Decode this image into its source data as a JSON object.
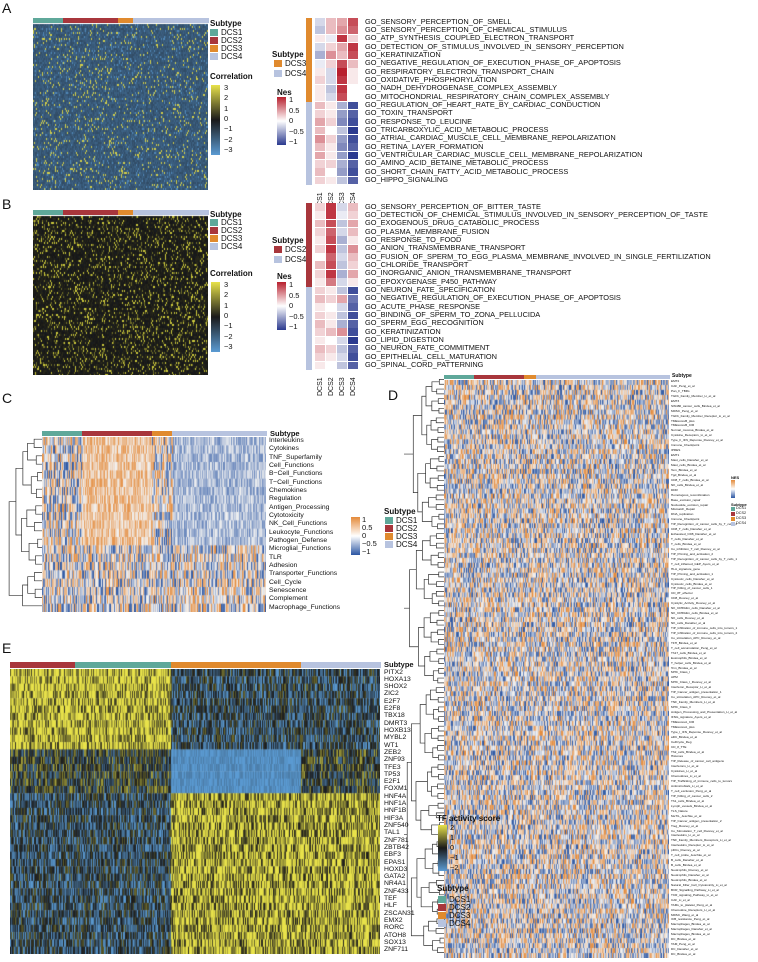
{
  "colors": {
    "DCS1": "#5fa89a",
    "DCS2": "#a8363c",
    "DCS3": "#e08a2e",
    "DCS4": "#b7c3df",
    "heat_low": "#5b9bd3",
    "heat_mid": "#111111",
    "heat_high": "#e8e24a",
    "nes_low": "#2b3a8f",
    "nes_high": "#b8202e"
  },
  "panelA": {
    "letter": "A",
    "subtype_title": "Subtype",
    "subtypes": [
      "DCS1",
      "DCS2",
      "DCS3",
      "DCS4"
    ],
    "corr_title": "Correlation",
    "corr_ticks": [
      "3",
      "2",
      "1",
      "0",
      "−1",
      "−2",
      "−3"
    ],
    "gsea_subtype_title": "Subtype",
    "gsea_subtypes": [
      "DCS3",
      "DCS4"
    ],
    "nes_title": "Nes",
    "nes_ticks": [
      "1",
      "0.5",
      "0",
      "−0.5",
      "−1"
    ],
    "columns": [
      "DCS1",
      "DCS2",
      "DCS3",
      "DCS4"
    ],
    "terms": [
      "GO_SENSORY_PERCEPTION_OF_SMELL",
      "GO_SENSORY_PERCEPTION_OF_CHEMICAL_STIMULUS",
      "GO_ATP_SYNTHESIS_COUPLED_ELECTRON_TRANSPORT",
      "GO_DETECTION_OF_STIMULUS_INVOLVED_IN_SENSORY_PERCEPTION",
      "GO_KERATINIZATION",
      "GO_NEGATIVE_REGULATION_OF_EXECUTION_PHASE_OF_APOPTOSIS",
      "GO_RESPIRATORY_ELECTRON_TRANSPORT_CHAIN",
      "GO_OXIDATIVE_PHOSPHORYLATION",
      "GO_NADH_DEHYDROGENASE_COMPLEX_ASSEMBLY",
      "GO_MITOCHONDRIAL_RESPIRATORY_CHAIN_COMPLEX_ASSEMBLY",
      "GO_REGULATION_OF_HEART_RATE_BY_CARDIAC_CONDUCTION",
      "GO_TOXIN_TRANSPORT",
      "GO_RESPONSE_TO_LEUCINE",
      "GO_TRICARBOXYLIC_ACID_METABOLIC_PROCESS",
      "GO_ATRIAL_CARDIAC_MUSCLE_CELL_MEMBRANE_REPOLARIZATION",
      "GO_RETINA_LAYER_FORMATION",
      "GO_VENTRICULAR_CARDIAC_MUSCLE_CELL_MEMBRANE_REPOLARIZATION",
      "GO_AMINO_ACID_BETAINE_METABOLIC_PROCESS",
      "GO_SHORT_CHAIN_FATTY_ACID_METABOLIC_PROCESS",
      "GO_HIPPO_SIGNALING"
    ],
    "row_subtype": [
      "DCS3",
      "DCS3",
      "DCS3",
      "DCS3",
      "DCS3",
      "DCS3",
      "DCS3",
      "DCS3",
      "DCS3",
      "DCS3",
      "DCS4",
      "DCS4",
      "DCS4",
      "DCS4",
      "DCS4",
      "DCS4",
      "DCS4",
      "DCS4",
      "DCS4",
      "DCS4"
    ],
    "nes": [
      [
        -0.2,
        0.3,
        0.4,
        0.8
      ],
      [
        -0.3,
        0.3,
        0.5,
        0.7
      ],
      [
        0.1,
        -0.1,
        0.9,
        0.2
      ],
      [
        -0.2,
        0.2,
        0.4,
        0.9
      ],
      [
        -0.4,
        0.5,
        0.3,
        0.8
      ],
      [
        -0.1,
        0.2,
        0.8,
        0.3
      ],
      [
        0.1,
        -0.2,
        1.0,
        0.1
      ],
      [
        0.2,
        -0.2,
        0.9,
        0.1
      ],
      [
        0.1,
        -0.3,
        0.9,
        0.0
      ],
      [
        0.1,
        -0.2,
        0.8,
        0.0
      ],
      [
        0.3,
        0.1,
        -0.4,
        -0.9
      ],
      [
        0.2,
        0.1,
        -0.5,
        -0.8
      ],
      [
        0.4,
        0.2,
        -0.6,
        -0.9
      ],
      [
        0.3,
        0.0,
        -0.3,
        -1.0
      ],
      [
        0.5,
        0.2,
        -0.5,
        -0.9
      ],
      [
        0.3,
        0.1,
        -0.6,
        -0.8
      ],
      [
        0.4,
        0.1,
        -0.5,
        -1.0
      ],
      [
        0.2,
        0.2,
        -0.4,
        -0.8
      ],
      [
        0.3,
        0.0,
        -0.5,
        -0.9
      ],
      [
        0.2,
        0.1,
        -0.3,
        -0.8
      ]
    ]
  },
  "panelB": {
    "letter": "B",
    "subtype_title": "Subtype",
    "subtypes": [
      "DCS1",
      "DCS2",
      "DCS3",
      "DCS4"
    ],
    "corr_title": "Correlation",
    "corr_ticks": [
      "3",
      "2",
      "1",
      "0",
      "−1",
      "−2",
      "−3"
    ],
    "gsea_subtype_title": "Subtype",
    "gsea_subtypes": [
      "DCS2",
      "DCS4"
    ],
    "nes_title": "Nes",
    "nes_ticks": [
      "1",
      "0.5",
      "0",
      "−0.5",
      "−1"
    ],
    "columns": [
      "DCS1",
      "DCS2",
      "DCS3",
      "DCS4"
    ],
    "terms": [
      "GO_SENSORY_PERCEPTION_OF_BITTER_TASTE",
      "GO_DETECTION_OF_CHEMICAL_STIMULUS_INVOLVED_IN_SENSORY_PERCEPTION_OF_TASTE",
      "GO_EXOGENOUS_DRUG_CATABOLIC_PROCESS",
      "GO_PLASMA_MEMBRANE_FUSION",
      "GO_RESPONSE_TO_FOOD",
      "GO_ANION_TRANSMEMBRANE_TRANSPORT",
      "GO_FUSION_OF_SPERM_TO_EGG_PLASMA_MEMBRANE_INVOLVED_IN_SINGLE_FERTILIZATION",
      "GO_CHLORIDE_TRANSPORT",
      "GO_INORGANIC_ANION_TRANSMEMBRANE_TRANSPORT",
      "GO_EPOXYGENASE_P450_PATHWAY",
      "GO_NEURON_FATE_SPECIFICATION",
      "GO_NEGATIVE_REGULATION_OF_EXECUTION_PHASE_OF_APOPTOSIS",
      "GO_ACUTE_PHASE_RESPONSE",
      "GO_BINDING_OF_SPERM_TO_ZONA_PELLUCIDA",
      "GO_SPERM_EGG_RECOGNITION",
      "GO_KERATINIZATION",
      "GO_LIPID_DIGESTION",
      "GO_NEURON_FATE_COMMITMENT",
      "GO_EPITHELIAL_CELL_MATURATION",
      "GO_SPINAL_CORD_PATTERNING"
    ],
    "row_subtype": [
      "DCS2",
      "DCS2",
      "DCS2",
      "DCS2",
      "DCS2",
      "DCS2",
      "DCS2",
      "DCS2",
      "DCS2",
      "DCS2",
      "DCS4",
      "DCS4",
      "DCS4",
      "DCS4",
      "DCS4",
      "DCS4",
      "DCS4",
      "DCS4",
      "DCS4",
      "DCS4"
    ],
    "nes": [
      [
        0.2,
        0.9,
        -0.2,
        0.3
      ],
      [
        0.1,
        0.9,
        -0.1,
        0.2
      ],
      [
        0.3,
        0.8,
        -0.3,
        0.4
      ],
      [
        0.2,
        0.7,
        -0.2,
        0.3
      ],
      [
        0.1,
        0.8,
        -0.4,
        0.1
      ],
      [
        0.2,
        0.9,
        -0.3,
        0.5
      ],
      [
        0.0,
        0.7,
        -0.2,
        0.3
      ],
      [
        0.3,
        0.8,
        -0.3,
        0.2
      ],
      [
        0.2,
        0.9,
        -0.4,
        0.4
      ],
      [
        0.1,
        0.6,
        -0.2,
        0.1
      ],
      [
        0.2,
        0.1,
        -0.3,
        -0.9
      ],
      [
        0.3,
        0.2,
        0.4,
        -0.7
      ],
      [
        0.1,
        0.0,
        -0.2,
        -0.8
      ],
      [
        0.2,
        0.1,
        -0.3,
        -0.9
      ],
      [
        0.3,
        0.1,
        -0.4,
        -0.8
      ],
      [
        0.2,
        0.3,
        0.5,
        -0.9
      ],
      [
        0.1,
        0.0,
        -0.2,
        -1.0
      ],
      [
        0.3,
        0.2,
        -0.3,
        -0.8
      ],
      [
        0.2,
        0.1,
        -0.2,
        -0.9
      ],
      [
        0.1,
        0.0,
        -0.3,
        -0.8
      ]
    ]
  },
  "panelC": {
    "letter": "C",
    "subtype_title": "Subtype",
    "subtypes": [
      "DCS1",
      "DCS2",
      "DCS3",
      "DCS4"
    ],
    "scale_ticks": [
      "1",
      "0.5",
      "0",
      "−0.5",
      "−1"
    ],
    "rows": [
      "Interleukins",
      "Cytokines",
      "TNF_Superfamily",
      "Cell_Functions",
      "B−Cell_Functions",
      "T−Cell_Functions",
      "Chemokines",
      "Regulation",
      "Antigen_Processing",
      "Cytotoxicity",
      "NK_Cell_Functions",
      "Leukocyte_Functions",
      "Pathogen_Defense",
      "Microglial_Functions",
      "TLR",
      "Adhesion",
      "Transporter_Functions",
      "Cell_Cycle",
      "Senescence",
      "Complement",
      "Macrophage_Functions"
    ]
  },
  "panelD": {
    "letter": "D",
    "subtype_title": "Subtype",
    "legend_title": "NES",
    "legend_subtype_title": "Subtype",
    "subtypes": [
      "DCS1",
      "DCS2",
      "DCS3",
      "DCS4"
    ],
    "rows": [
      "EMT2",
      "CAF_Peng_et_al",
      "Pan_F_TBRs",
      "TGFb_Family_Member_Li_et_al",
      "EMT3",
      "SW480_cancer_cells_Bindea_et_al",
      "MDSC_Peng_et_al",
      "TGFb_Family_Member_Receptor_Li_et_al",
      "TMEscoreB_plus",
      "TMEscoreB_CIR",
      "Normal_mucosa_Bindea_et_al",
      "Cytokine_Receptors_Li_et_al",
      "Type_II_IFN_Reponse_Rooney_et_al",
      "Immune_Checkpoint",
      "IPRES",
      "EMT1",
      "Mast_cells_Danaher_et_al",
      "Mast_cells_Bindea_et_al",
      "Tem_Bindea_et_al",
      "Tgd_Bindea_et_al",
      "CD8_T_cells_Bindea_et_al",
      "NK_cells_Bindea_et_al",
      "DDR",
      "Homologous_recombination",
      "Base_excision_repair",
      "Nucleotide_excision_repair",
      "Mismatch_Repair",
      "DNA_replication",
      "Immune_Checkpoint",
      "TIP_Recognition_of_cancer_cells_by_T_cells_2",
      "CD8_T_cells_Danaher_et_al",
      "Exhausted_CD8_Danaher_et_al",
      "T_cells_Danaher_et_al",
      "T_cells_Bindea_et_al",
      "Co_inhibition_T_cell_Rooney_et_al",
      "TIP_Priming_and_activation_2",
      "TIP_Recognition_of_cancer_cells_by_T_cells_1",
      "T_cell_inflamed_GEP_Ayers_et_al",
      "HLA_signature_gene",
      "TIP_Priming_and_activation_1",
      "Cytotoxic_cells_Danaher_et_al",
      "Cytotoxic_cells_Bindea_et_al",
      "TIP_Killing_of_cancer_cells_1",
      "CD_8T_effector",
      "CD8_Rooney_et_al",
      "Cytolytic_Activity_Rooney_et_al",
      "NK_CD56dim_cells_Danaher_et_al",
      "NK_CD56dim_cells_Bindea_et_al",
      "NK_cells_Rooney_et_al",
      "NK_cells_Danaher_et_al",
      "TIP_Infiltration_of_immune_cells_into_tumors_1",
      "TIP_Infiltration_of_immune_cells_into_tumors_2",
      "Co_stimulation_APC_Rooney_et_al",
      "TFH_Bindea_et_al",
      "T_cell_accumulation_Peng_et_al",
      "Th17_cells_Bindea_et_al",
      "Eosinophils_Bindea_et_al",
      "T_helper_cells_Bindea_et_al",
      "Tcm_Bindea_et_al",
      "MHC_Class_I",
      "APM",
      "MHC_Class_I_Rooney_et_al",
      "Interferon_Receptor_Li_et_al",
      "TIP_Cancer_antigen_presentation_1",
      "Co_stimulation_APC_Rooney_et_al",
      "TNF_Family_Members_Li_et_al",
      "MHC_Class_II",
      "Antigen_Processing_and_Presentation_Li_et_al",
      "IFNG_signature_Ayers_et_al",
      "TMEscoreA_CIR",
      "TMEscoreA_plus",
      "Type_I_IFN_Reponse_Rooney_et_al",
      "aDC_Bindea_et_al",
      "CellCycle_Reg",
      "CD_8_TTE",
      "Th2_cells_Bindea_et_al",
      "Histones",
      "TIP_Release_of_cancer_cell_antigens",
      "Interferons_Li_et_al",
      "Cytokines_Li_et_al",
      "Chemokines_Li_et_al",
      "TIP_Trafficking_of_immune_cells_to_tumors",
      "Antimicrobials_Li_et_al",
      "T_cell_exclusion_Peng_et_al",
      "TIP_Killing_of_cancer_cells_2",
      "Th1_cells_Bindea_et_al",
      "Lymph_vessels_Bindea_et_al",
      "TLS_Nature",
      "MeTIL_Jeschke_et_al",
      "TIP_Cancer_antigen_presentation_2",
      "Treg_Rooney_et_al",
      "Co_Stimulation_T_cell_Rooney_et_al",
      "Interleukins_Li_et_al",
      "TNF_Family_Members_Receptors_Li_et_al",
      "Interleukins_Receptor_Li_et_al",
      "pDCs_Rooney_et_al",
      "T_cell_probe_Jeschke_et_al",
      "B_cells_Danaher_et_al",
      "B_cells_Bindea_et_al",
      "Neutrophils_Rooney_et_al",
      "Neutrophils_Danaher_et_al",
      "Neutrophils_Bindea_et_al",
      "Natural_Killer_Cell_Cytotoxicity_Li_et_al",
      "BCR_Signalling_Pathway_Li_et_al",
      "TCR_signaling_Pathway_Li_et_al",
      "CAF_Li_et_al",
      "TAMs_to_platelet_Peng_et_al",
      "Chemokine_Receptors_Li_et_al",
      "MDSC_Wang_et_al",
      "ICB_resistance_Peng_et_al",
      "Macrophages_Bindea_et_al",
      "Macrophages_Danaher_et_al",
      "Macrophages_Bindea_et_al",
      "DC_Bindea_et_al",
      "TAM_Peng_et_al",
      "DC_Danaher_et_al",
      "DC_Bindea_et_al"
    ]
  },
  "panelE": {
    "letter": "E",
    "subtype_title": "Subtype",
    "tf_title": "TF activity score",
    "tf_ticks": [
      "2",
      "1",
      "0",
      "−1",
      "−2"
    ],
    "legend_subtype_title": "Subtype",
    "subtypes": [
      "DCS1",
      "DCS2",
      "DCS3",
      "DCS4"
    ],
    "rows": [
      "PITX2",
      "HOXA13",
      "SHOX2",
      "ZIC2",
      "E2F7",
      "E2F8",
      "TBX18",
      "DMRT3",
      "HOXB13",
      "MYBL2",
      "WT1",
      "ZEB2",
      "ZNF93",
      "TFE3",
      "TP53",
      "E2F1",
      "FOXM1",
      "HNF4A",
      "HNF1A",
      "HNF1B",
      "HIF3A",
      "ZNF540",
      "TAL1",
      "ZNF781",
      "ZBTB42",
      "EBF3",
      "EPAS1",
      "HOXD3",
      "GATA2",
      "NR4A1",
      "ZNF433",
      "TEF",
      "HLF",
      "ZSCAN31",
      "EMX2",
      "RORC",
      "ATOH8",
      "SOX13",
      "ZNF711"
    ]
  }
}
